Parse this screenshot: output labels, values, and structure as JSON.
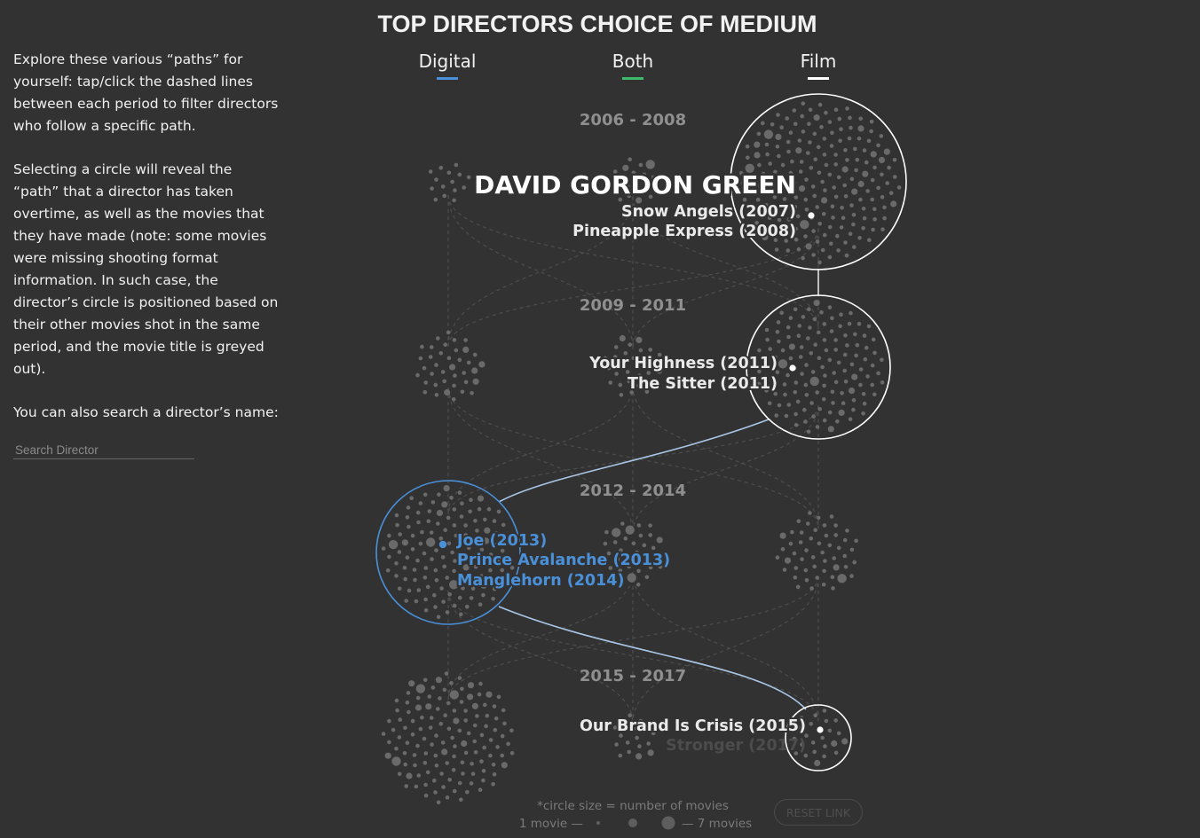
{
  "sidebar": {
    "para1": "Explore these various “paths” for yourself: tap/click the dashed lines between each period to filter directors who follow a specific path.",
    "para2": "Selecting a circle will reveal the “path” that a director has taken overtime, as well as the movies that they have made (note: some movies were missing shooting format information. In such case, the director’s circle is positioned based on their other movies shot in the same period, and the movie title is greyed out).",
    "para3": "You can also search a director’s name:",
    "search_placeholder": "Search Director"
  },
  "reset_label": "RESET LINK",
  "chart_data": {
    "type": "bubble-flow",
    "title": "TOP DIRECTORS CHOICE OF MEDIUM",
    "columns": [
      {
        "name": "Digital",
        "color": "#4a90d9"
      },
      {
        "name": "Both",
        "color": "#3dbb6a"
      },
      {
        "name": "Film",
        "color": "#ffffff"
      }
    ],
    "periods": [
      "2006 - 2008",
      "2009 - 2011",
      "2012 - 2014",
      "2015 - 2017"
    ],
    "selected_director": {
      "name": "DAVID GORDON GREEN",
      "path": [
        {
          "period": "2006 - 2008",
          "medium": "Film",
          "movies": [
            {
              "title": "Snow Angels (2007)",
              "greyed": false
            },
            {
              "title": "Pineapple Express (2008)",
              "greyed": false
            }
          ]
        },
        {
          "period": "2009 - 2011",
          "medium": "Film",
          "movies": [
            {
              "title": "Your Highness (2011)",
              "greyed": false
            },
            {
              "title": "The Sitter (2011)",
              "greyed": false
            }
          ]
        },
        {
          "period": "2012 - 2014",
          "medium": "Digital",
          "movies": [
            {
              "title": "Joe (2013)",
              "greyed": false
            },
            {
              "title": "Prince Avalanche (2013)",
              "greyed": false
            },
            {
              "title": "Manglehorn (2014)",
              "greyed": false
            }
          ]
        },
        {
          "period": "2015 - 2017",
          "medium": "Film",
          "movies": [
            {
              "title": "Our Brand Is Crisis (2015)",
              "greyed": false
            },
            {
              "title": "Stronger (2017)",
              "greyed": true
            }
          ]
        }
      ]
    },
    "legend": {
      "note": "*circle size = number of movies",
      "min_label": "1 movie —",
      "max_label": "— 7 movies",
      "min_movies": 1,
      "max_movies": 7
    }
  }
}
